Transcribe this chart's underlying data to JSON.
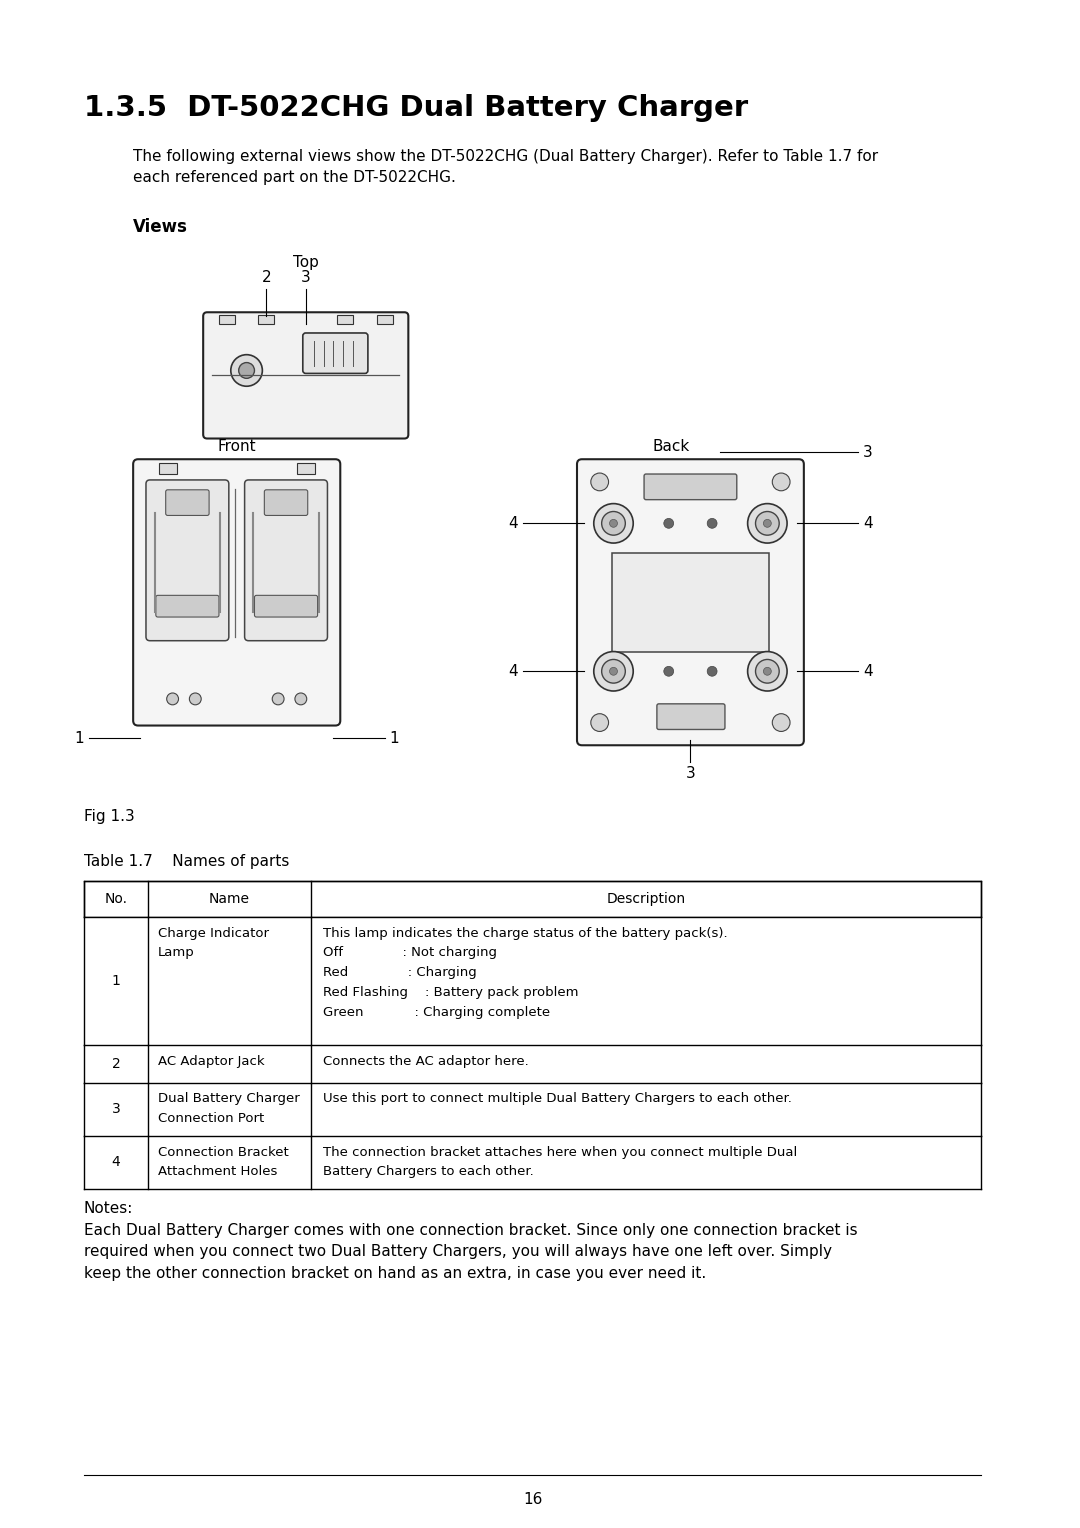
{
  "title": "1.3.5  DT-5022CHG Dual Battery Charger",
  "intro_text1": "The following external views show the DT-5022CHG (Dual Battery Charger). Refer to Table 1.7 for",
  "intro_text2": "each referenced part on the DT-5022CHG.",
  "views_label": "Views",
  "top_label": "Top",
  "front_label": "Front",
  "back_label": "Back",
  "fig_label": "Fig 1.3",
  "table_title": "Table 1.7    Names of parts",
  "page_number": "16",
  "bg_color": "#ffffff",
  "text_color": "#000000"
}
